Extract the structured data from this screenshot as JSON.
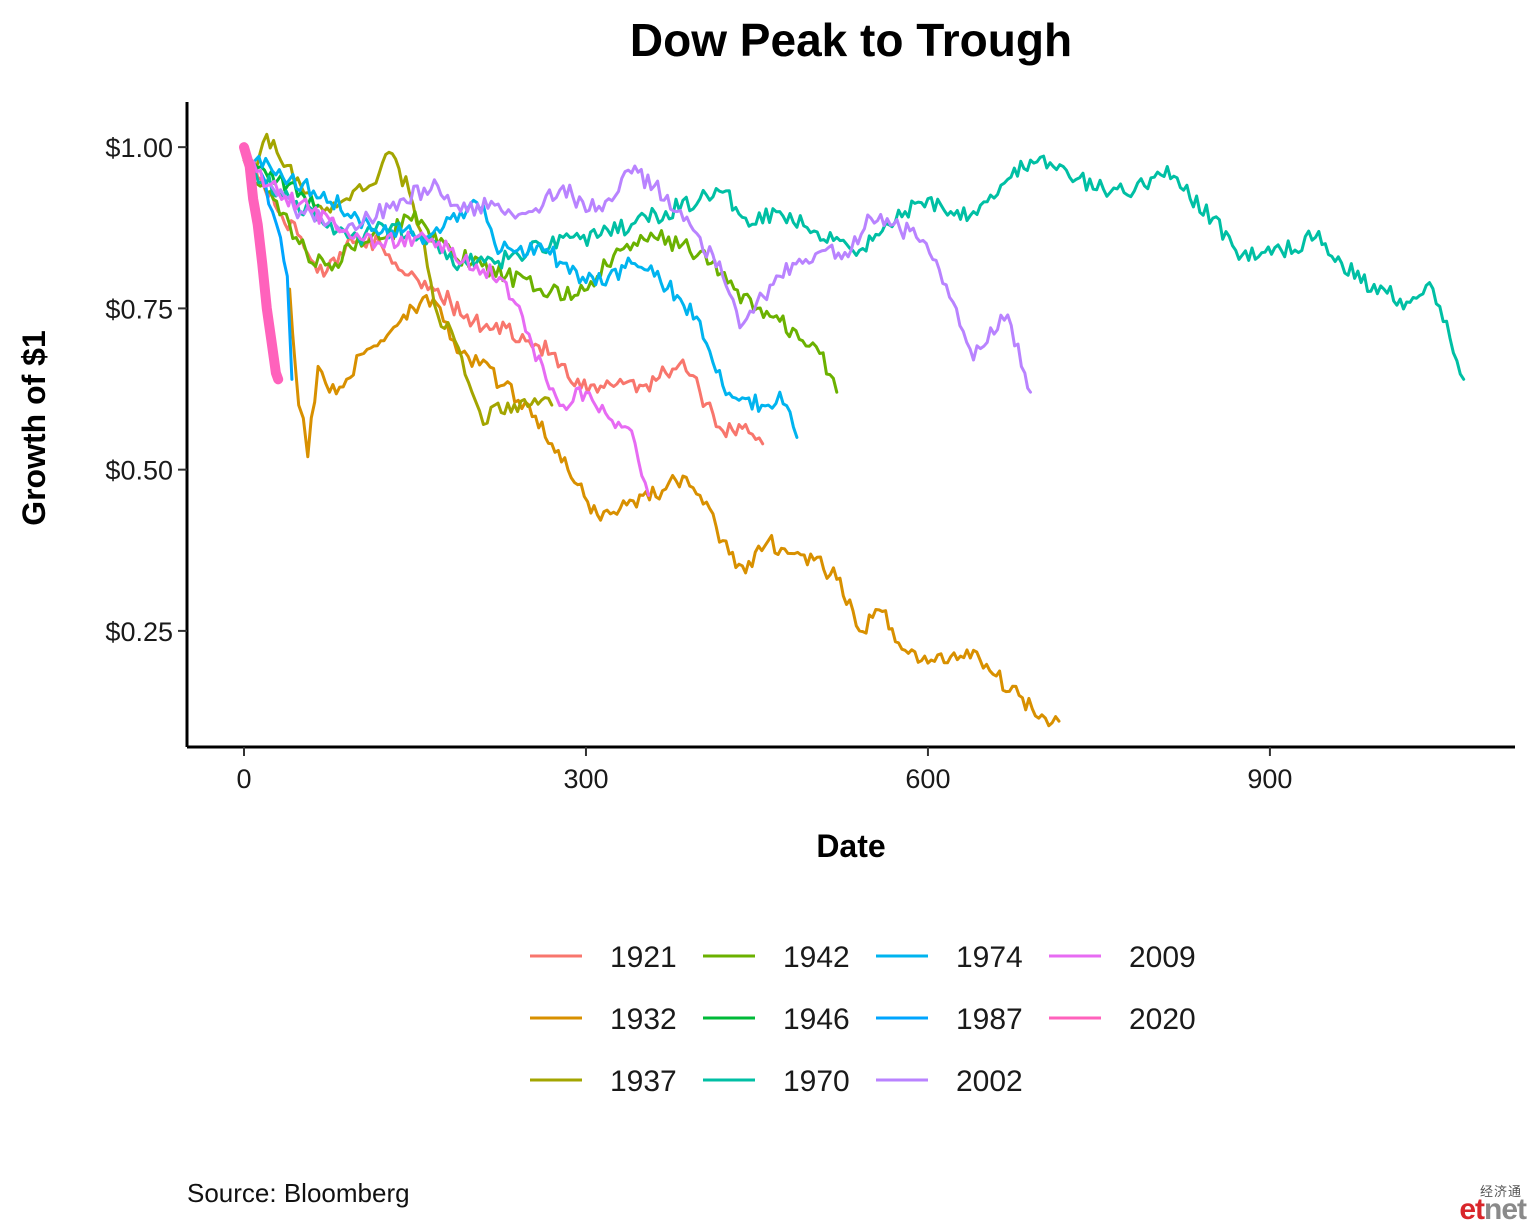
{
  "caption": "Source:  Bloomberg",
  "logo": {
    "cn": "经济通",
    "et": "et",
    "net": "net"
  },
  "chart_data": {
    "type": "line",
    "title": "Dow Peak to Trough",
    "xlabel": "Date",
    "ylabel": "Growth of $1",
    "xlim": [
      -50,
      1115
    ],
    "ylim": [
      0.07,
      1.07
    ],
    "xticks": [
      0,
      300,
      600,
      900
    ],
    "xtick_labels": [
      "0",
      "300",
      "600",
      "900"
    ],
    "yticks": [
      0.25,
      0.5,
      0.75,
      1.0
    ],
    "ytick_labels": [
      "$0.25",
      "$0.50",
      "$0.75",
      "$1.00"
    ],
    "grid": false,
    "legend_position": "bottom",
    "legend_columns": [
      [
        "1921",
        "1932",
        "1937"
      ],
      [
        "1942",
        "1946",
        "1970"
      ],
      [
        "1974",
        "1987",
        "2002"
      ],
      [
        "2009",
        "2020"
      ]
    ],
    "series": [
      {
        "name": "1921",
        "color": "#F8766D",
        "width": 3,
        "points": [
          [
            0,
            1.0
          ],
          [
            15,
            0.95
          ],
          [
            30,
            0.9
          ],
          [
            50,
            0.86
          ],
          [
            70,
            0.8
          ],
          [
            90,
            0.85
          ],
          [
            110,
            0.86
          ],
          [
            130,
            0.82
          ],
          [
            150,
            0.8
          ],
          [
            170,
            0.78
          ],
          [
            190,
            0.74
          ],
          [
            210,
            0.72
          ],
          [
            230,
            0.72
          ],
          [
            250,
            0.7
          ],
          [
            270,
            0.68
          ],
          [
            290,
            0.63
          ],
          [
            310,
            0.62
          ],
          [
            330,
            0.64
          ],
          [
            350,
            0.63
          ],
          [
            370,
            0.65
          ],
          [
            385,
            0.67
          ],
          [
            400,
            0.62
          ],
          [
            420,
            0.56
          ],
          [
            440,
            0.57
          ],
          [
            455,
            0.54
          ]
        ]
      },
      {
        "name": "1932",
        "color": "#D89000",
        "width": 3,
        "points": [
          [
            40,
            0.78
          ],
          [
            48,
            0.6
          ],
          [
            52,
            0.58
          ],
          [
            56,
            0.52
          ],
          [
            65,
            0.66
          ],
          [
            75,
            0.62
          ],
          [
            90,
            0.64
          ],
          [
            105,
            0.68
          ],
          [
            120,
            0.7
          ],
          [
            140,
            0.74
          ],
          [
            160,
            0.77
          ],
          [
            175,
            0.73
          ],
          [
            190,
            0.68
          ],
          [
            200,
            0.66
          ],
          [
            210,
            0.67
          ],
          [
            225,
            0.63
          ],
          [
            250,
            0.6
          ],
          [
            270,
            0.54
          ],
          [
            290,
            0.48
          ],
          [
            310,
            0.43
          ],
          [
            330,
            0.44
          ],
          [
            350,
            0.46
          ],
          [
            370,
            0.47
          ],
          [
            385,
            0.49
          ],
          [
            400,
            0.46
          ],
          [
            420,
            0.39
          ],
          [
            440,
            0.34
          ],
          [
            460,
            0.39
          ],
          [
            480,
            0.37
          ],
          [
            500,
            0.36
          ],
          [
            520,
            0.33
          ],
          [
            540,
            0.25
          ],
          [
            560,
            0.28
          ],
          [
            580,
            0.22
          ],
          [
            600,
            0.2
          ],
          [
            620,
            0.21
          ],
          [
            640,
            0.22
          ],
          [
            660,
            0.18
          ],
          [
            680,
            0.15
          ],
          [
            700,
            0.12
          ],
          [
            715,
            0.11
          ]
        ]
      },
      {
        "name": "1937",
        "color": "#A3A500",
        "width": 3,
        "points": [
          [
            0,
            0.98
          ],
          [
            10,
            0.96
          ],
          [
            20,
            1.02
          ],
          [
            35,
            0.97
          ],
          [
            50,
            0.94
          ],
          [
            70,
            0.9
          ],
          [
            90,
            0.92
          ],
          [
            110,
            0.94
          ],
          [
            130,
            0.99
          ],
          [
            145,
            0.93
          ],
          [
            155,
            0.87
          ],
          [
            170,
            0.74
          ],
          [
            185,
            0.7
          ],
          [
            200,
            0.62
          ],
          [
            210,
            0.57
          ],
          [
            220,
            0.6
          ],
          [
            240,
            0.59
          ],
          [
            255,
            0.61
          ],
          [
            270,
            0.6
          ]
        ]
      },
      {
        "name": "1942",
        "color": "#6BB100",
        "width": 3,
        "points": [
          [
            0,
            0.98
          ],
          [
            20,
            0.93
          ],
          [
            40,
            0.88
          ],
          [
            60,
            0.82
          ],
          [
            80,
            0.82
          ],
          [
            100,
            0.86
          ],
          [
            125,
            0.86
          ],
          [
            150,
            0.9
          ],
          [
            170,
            0.85
          ],
          [
            200,
            0.82
          ],
          [
            230,
            0.8
          ],
          [
            260,
            0.78
          ],
          [
            290,
            0.77
          ],
          [
            310,
            0.8
          ],
          [
            330,
            0.84
          ],
          [
            360,
            0.86
          ],
          [
            385,
            0.85
          ],
          [
            410,
            0.82
          ],
          [
            430,
            0.78
          ],
          [
            450,
            0.75
          ],
          [
            470,
            0.73
          ],
          [
            490,
            0.7
          ],
          [
            505,
            0.68
          ],
          [
            520,
            0.62
          ]
        ]
      },
      {
        "name": "1946",
        "color": "#00BA38",
        "width": 3,
        "points": [
          [
            0,
            0.99
          ],
          [
            15,
            0.97
          ],
          [
            30,
            0.95
          ],
          [
            50,
            0.93
          ],
          [
            65,
            0.91
          ]
        ]
      },
      {
        "name": "1970",
        "color": "#00BFA4",
        "width": 3,
        "points": [
          [
            10,
            0.96
          ],
          [
            40,
            0.92
          ],
          [
            70,
            0.88
          ],
          [
            100,
            0.86
          ],
          [
            130,
            0.88
          ],
          [
            160,
            0.85
          ],
          [
            190,
            0.82
          ],
          [
            220,
            0.82
          ],
          [
            250,
            0.84
          ],
          [
            280,
            0.86
          ],
          [
            310,
            0.86
          ],
          [
            340,
            0.88
          ],
          [
            370,
            0.9
          ],
          [
            400,
            0.92
          ],
          [
            420,
            0.93
          ],
          [
            440,
            0.89
          ],
          [
            470,
            0.9
          ],
          [
            500,
            0.87
          ],
          [
            520,
            0.86
          ],
          [
            540,
            0.84
          ],
          [
            560,
            0.87
          ],
          [
            580,
            0.9
          ],
          [
            600,
            0.92
          ],
          [
            620,
            0.9
          ],
          [
            640,
            0.9
          ],
          [
            670,
            0.95
          ],
          [
            690,
            0.98
          ],
          [
            710,
            0.97
          ],
          [
            730,
            0.95
          ],
          [
            760,
            0.93
          ],
          [
            790,
            0.94
          ],
          [
            810,
            0.97
          ],
          [
            830,
            0.92
          ],
          [
            850,
            0.89
          ],
          [
            870,
            0.84
          ],
          [
            890,
            0.83
          ],
          [
            910,
            0.84
          ],
          [
            940,
            0.86
          ],
          [
            960,
            0.83
          ],
          [
            980,
            0.79
          ],
          [
            1000,
            0.78
          ],
          [
            1020,
            0.76
          ],
          [
            1040,
            0.79
          ],
          [
            1055,
            0.73
          ],
          [
            1070,
            0.64
          ]
        ]
      },
      {
        "name": "1974",
        "color": "#00B4EF",
        "width": 3,
        "points": [
          [
            10,
            0.98
          ],
          [
            40,
            0.95
          ],
          [
            70,
            0.93
          ],
          [
            100,
            0.89
          ],
          [
            130,
            0.87
          ],
          [
            160,
            0.86
          ],
          [
            190,
            0.9
          ],
          [
            210,
            0.91
          ],
          [
            220,
            0.85
          ],
          [
            240,
            0.84
          ],
          [
            260,
            0.85
          ],
          [
            280,
            0.82
          ],
          [
            300,
            0.79
          ],
          [
            320,
            0.8
          ],
          [
            340,
            0.82
          ],
          [
            360,
            0.8
          ],
          [
            380,
            0.77
          ],
          [
            400,
            0.73
          ],
          [
            420,
            0.63
          ],
          [
            440,
            0.61
          ],
          [
            460,
            0.6
          ],
          [
            470,
            0.62
          ],
          [
            485,
            0.55
          ]
        ]
      },
      {
        "name": "1987",
        "color": "#00A5FF",
        "width": 3,
        "points": [
          [
            15,
            0.96
          ],
          [
            25,
            0.9
          ],
          [
            32,
            0.86
          ],
          [
            38,
            0.8
          ],
          [
            42,
            0.64
          ]
        ]
      },
      {
        "name": "2002",
        "color": "#B983FF",
        "width": 3,
        "points": [
          [
            20,
            0.94
          ],
          [
            50,
            0.9
          ],
          [
            80,
            0.88
          ],
          [
            110,
            0.89
          ],
          [
            140,
            0.92
          ],
          [
            170,
            0.94
          ],
          [
            190,
            0.9
          ],
          [
            220,
            0.91
          ],
          [
            250,
            0.9
          ],
          [
            280,
            0.94
          ],
          [
            300,
            0.9
          ],
          [
            320,
            0.92
          ],
          [
            340,
            0.96
          ],
          [
            360,
            0.94
          ],
          [
            380,
            0.9
          ],
          [
            400,
            0.86
          ],
          [
            420,
            0.8
          ],
          [
            435,
            0.72
          ],
          [
            450,
            0.76
          ],
          [
            470,
            0.8
          ],
          [
            490,
            0.82
          ],
          [
            510,
            0.84
          ],
          [
            530,
            0.83
          ],
          [
            550,
            0.89
          ],
          [
            570,
            0.88
          ],
          [
            590,
            0.86
          ],
          [
            610,
            0.81
          ],
          [
            625,
            0.75
          ],
          [
            640,
            0.67
          ],
          [
            655,
            0.72
          ],
          [
            670,
            0.74
          ],
          [
            685,
            0.65
          ],
          [
            690,
            0.62
          ]
        ]
      },
      {
        "name": "2009",
        "color": "#E76BF3",
        "width": 3,
        "points": [
          [
            5,
            0.97
          ],
          [
            30,
            0.93
          ],
          [
            60,
            0.9
          ],
          [
            90,
            0.87
          ],
          [
            120,
            0.85
          ],
          [
            150,
            0.86
          ],
          [
            180,
            0.84
          ],
          [
            210,
            0.81
          ],
          [
            230,
            0.79
          ],
          [
            250,
            0.71
          ],
          [
            265,
            0.64
          ],
          [
            280,
            0.6
          ],
          [
            300,
            0.62
          ],
          [
            320,
            0.58
          ],
          [
            340,
            0.56
          ],
          [
            355,
            0.46
          ]
        ]
      },
      {
        "name": "2020",
        "color": "#FF62BC",
        "width": 10,
        "points": [
          [
            0,
            1.0
          ],
          [
            5,
            0.97
          ],
          [
            8,
            0.92
          ],
          [
            12,
            0.88
          ],
          [
            16,
            0.82
          ],
          [
            20,
            0.75
          ],
          [
            24,
            0.7
          ],
          [
            28,
            0.65
          ],
          [
            30,
            0.64
          ]
        ]
      }
    ]
  }
}
